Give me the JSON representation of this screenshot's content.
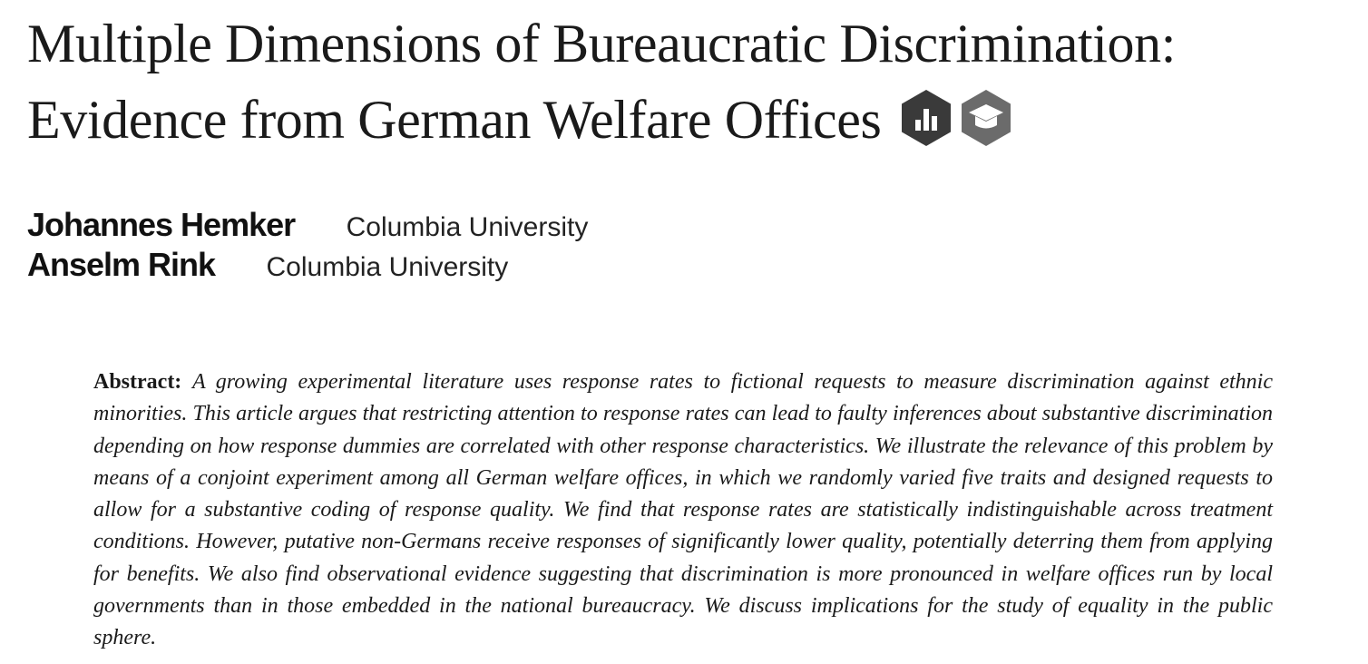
{
  "title": "Multiple Dimensions of Bureaucratic Discrimination: Evidence from German Welfare Offices",
  "badges": [
    {
      "icon": "open-data-icon"
    },
    {
      "icon": "open-materials-icon"
    }
  ],
  "authors": [
    {
      "name": "Johannes Hemker",
      "affiliation": "Columbia University"
    },
    {
      "name": "Anselm Rink",
      "affiliation": "Columbia University"
    }
  ],
  "abstract": {
    "label": "Abstract:",
    "text": "A growing experimental literature uses response rates to fictional requests to measure discrimination against ethnic minorities. This article argues that restricting attention to response rates can lead to faulty inferences about substantive discrimination depending on how response dummies are correlated with other response characteristics. We illustrate the relevance of this problem by means of a conjoint experiment among all German welfare offices, in which we randomly varied five traits and designed requests to allow for a substantive coding of response quality. We find that response rates are statistically indistinguishable across treatment conditions. However, putative non-Germans receive responses of significantly lower quality, potentially deterring them from applying for benefits. We also find observational evidence suggesting that discrimination is more pronounced in welfare offices run by local governments than in those embedded in the national bureaucracy. We discuss implications for the study of equality in the public sphere."
  },
  "colors": {
    "text": "#1a1a1a",
    "badge_dark": "#3a3a3a",
    "badge_mid": "#6b6b6b"
  }
}
